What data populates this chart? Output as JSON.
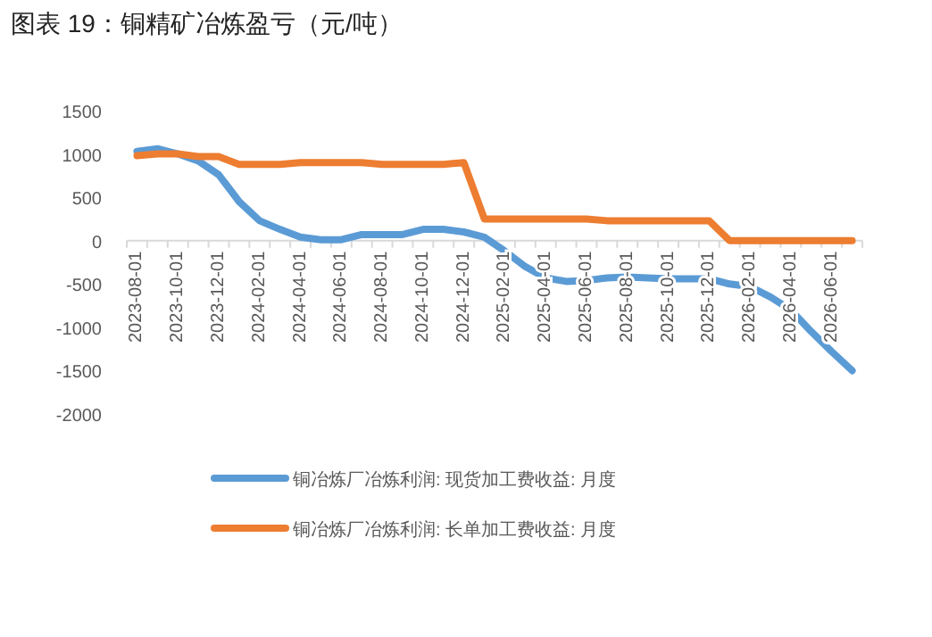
{
  "chart_data": {
    "type": "line",
    "title": "图表 19：铜精矿冶炼盈亏（元/吨）",
    "categories": [
      "2023-08-01",
      null,
      "2023-10-01",
      null,
      "2023-12-01",
      null,
      "2024-02-01",
      null,
      "2024-04-01",
      null,
      "2024-06-01",
      null,
      "2024-08-01",
      null,
      "2024-10-01",
      null,
      "2024-12-01",
      null,
      "2025-02-01",
      null,
      "2025-04-01",
      null,
      "2025-06-01",
      null,
      "2025-08-01",
      null,
      "2025-10-01",
      null,
      "2025-12-01",
      null,
      "2026-02-01",
      null,
      "2026-04-01",
      null,
      "2026-06-01",
      null
    ],
    "series": [
      {
        "name": "铜冶炼厂冶炼利润: 现货加工费收益: 月度",
        "color": "#5b9bd5",
        "values": [
          1030,
          1060,
          1000,
          920,
          760,
          450,
          230,
          130,
          40,
          10,
          10,
          70,
          70,
          70,
          130,
          130,
          100,
          40,
          -120,
          -300,
          -430,
          -470,
          -460,
          -430,
          -420,
          -430,
          -440,
          -440,
          -440,
          -500,
          -530,
          -650,
          -800,
          -1050,
          -1280,
          -1500
        ]
      },
      {
        "name": "铜冶炼厂冶炼利润: 长单加工费收益: 月度",
        "color": "#ed7d31",
        "values": [
          980,
          1000,
          1000,
          970,
          970,
          880,
          880,
          880,
          900,
          900,
          900,
          900,
          880,
          880,
          880,
          880,
          900,
          250,
          250,
          250,
          250,
          250,
          250,
          230,
          230,
          230,
          230,
          230,
          230,
          0,
          0,
          0,
          0,
          0,
          0,
          0
        ]
      }
    ],
    "ylim": [
      -2000,
      1500
    ],
    "yticks": [
      -2000,
      -1500,
      -1000,
      -500,
      0,
      500,
      1000,
      1500
    ],
    "legend": "bottom"
  }
}
